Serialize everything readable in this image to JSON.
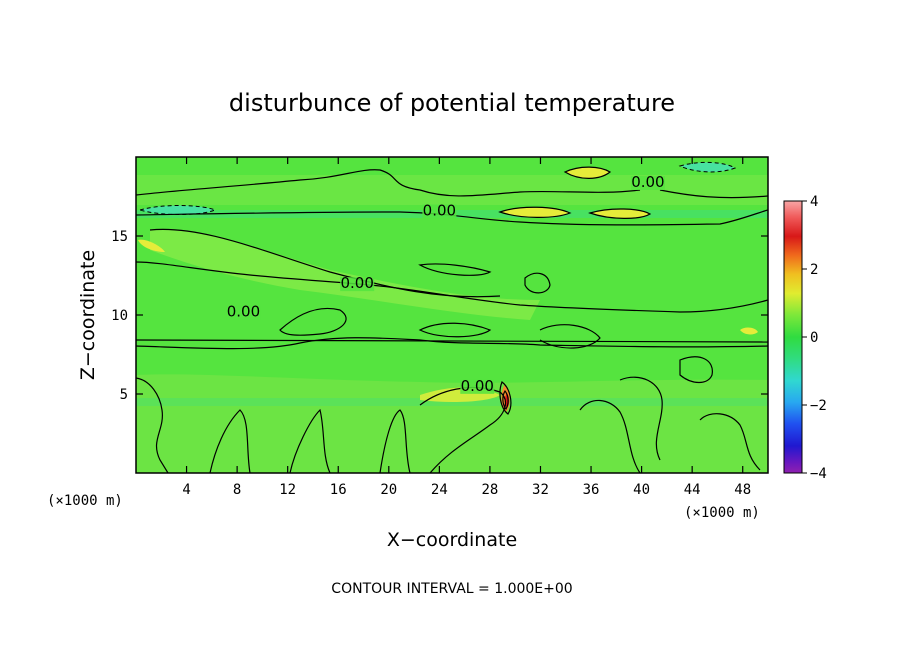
{
  "chart_data": {
    "type": "heatmap",
    "title": "disturbunce of potential temperature",
    "xlabel": "X−coordinate",
    "ylabel": "Z−coordinate",
    "x_unit": "(×1000 m)",
    "y_unit": "(×1000 m)",
    "xlim": [
      0,
      50
    ],
    "ylim": [
      0,
      20
    ],
    "x_ticks": [
      4,
      8,
      12,
      16,
      20,
      24,
      28,
      32,
      36,
      40,
      44,
      48
    ],
    "y_ticks": [
      5,
      10,
      15
    ],
    "contour_interval_text": "CONTOUR INTERVAL = 1.000E+00",
    "colorbar": {
      "min": -4,
      "max": 4,
      "ticks": [
        "4",
        "2",
        "0",
        "−2",
        "−4"
      ]
    },
    "colors": {
      "background": "#55e43f",
      "light_band": "#7cea46",
      "yellow": "#f0ec3c",
      "orange": "#f08c2c",
      "red": "#d81818",
      "cyan": "#40e0a8"
    },
    "contour_labels": [
      {
        "text": "0.00",
        "x": 40.5,
        "y": 18.1
      },
      {
        "text": "0.00",
        "x": 24.0,
        "y": 16.3
      },
      {
        "text": "0.00",
        "x": 17.5,
        "y": 11.7
      },
      {
        "text": "0.00",
        "x": 8.5,
        "y": 9.9
      },
      {
        "text": "0.00",
        "x": 27.0,
        "y": 5.2
      }
    ],
    "features": [
      {
        "kind": "min",
        "x": 4.0,
        "y": 16.6,
        "value": -1
      },
      {
        "kind": "min",
        "x": 45.0,
        "y": 19.0,
        "value": -1
      },
      {
        "kind": "max",
        "x": 34.0,
        "y": 19.0,
        "value": 1
      },
      {
        "kind": "max",
        "x": 31.0,
        "y": 16.5,
        "value": 1
      },
      {
        "kind": "max",
        "x": 38.0,
        "y": 16.4,
        "value": 1
      },
      {
        "kind": "max",
        "x": 0.8,
        "y": 14.4,
        "value": 1
      },
      {
        "kind": "max",
        "x": 27.0,
        "y": 4.5,
        "value": 1
      },
      {
        "kind": "max",
        "x": 29.8,
        "y": 4.8,
        "value": 4
      },
      {
        "kind": "max",
        "x": 48.6,
        "y": 9.0,
        "value": 1
      }
    ]
  }
}
